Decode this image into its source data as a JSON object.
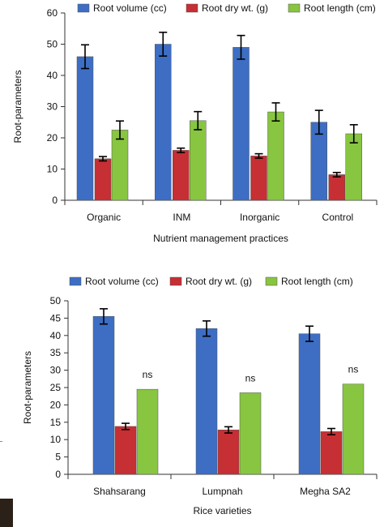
{
  "colors": {
    "root_volume": "#3d6ec4",
    "root_dry_wt": "#c62f33",
    "root_length": "#88c540",
    "bar_outline": "#555555",
    "error_bar": "#000000"
  },
  "chart_data": [
    {
      "type": "bar",
      "categories": [
        "Organic",
        "INM",
        "Inorganic",
        "Control"
      ],
      "series": [
        {
          "name": "Root volume (cc)",
          "values": [
            46,
            50,
            49,
            25
          ],
          "errors": [
            3.8,
            3.8,
            3.8,
            3.8
          ]
        },
        {
          "name": "Root dry wt. (g)",
          "values": [
            13.3,
            16,
            14.2,
            8.2
          ],
          "errors": [
            0.7,
            0.7,
            0.7,
            0.7
          ]
        },
        {
          "name": "Root length (cm)",
          "values": [
            22.5,
            25.5,
            28.3,
            21.3
          ],
          "errors": [
            2.9,
            2.9,
            2.9,
            2.9
          ]
        }
      ],
      "annotations": [],
      "ylabel": "Root-parameters",
      "xlabel": "Nutrient management practices",
      "ylim": [
        0,
        60
      ],
      "yticks": [
        0,
        10,
        20,
        30,
        40,
        50,
        60
      ],
      "grid": false,
      "legend_position": "top"
    },
    {
      "type": "bar",
      "categories": [
        "Shahsarang",
        "Lumpnah",
        "Megha SA2"
      ],
      "series": [
        {
          "name": "Root volume (cc)",
          "values": [
            45.5,
            42,
            40.5
          ],
          "errors": [
            2.2,
            2.2,
            2.2
          ]
        },
        {
          "name": "Root dry wt. (g)",
          "values": [
            13.8,
            12.8,
            12.3
          ],
          "errors": [
            0.9,
            0.9,
            0.9
          ]
        },
        {
          "name": "Root length (cm)",
          "values": [
            24.5,
            23.5,
            26
          ],
          "errors": null
        }
      ],
      "annotations": [
        {
          "series": 2,
          "category": 0,
          "text": "ns"
        },
        {
          "series": 2,
          "category": 1,
          "text": "ns"
        },
        {
          "series": 2,
          "category": 2,
          "text": "ns"
        }
      ],
      "ylabel": "Root-parameters",
      "xlabel": "Rice varieties",
      "ylim": [
        0,
        50
      ],
      "yticks": [
        0,
        5,
        10,
        15,
        20,
        25,
        30,
        35,
        40,
        45,
        50
      ],
      "grid": false,
      "legend_position": "top"
    }
  ]
}
